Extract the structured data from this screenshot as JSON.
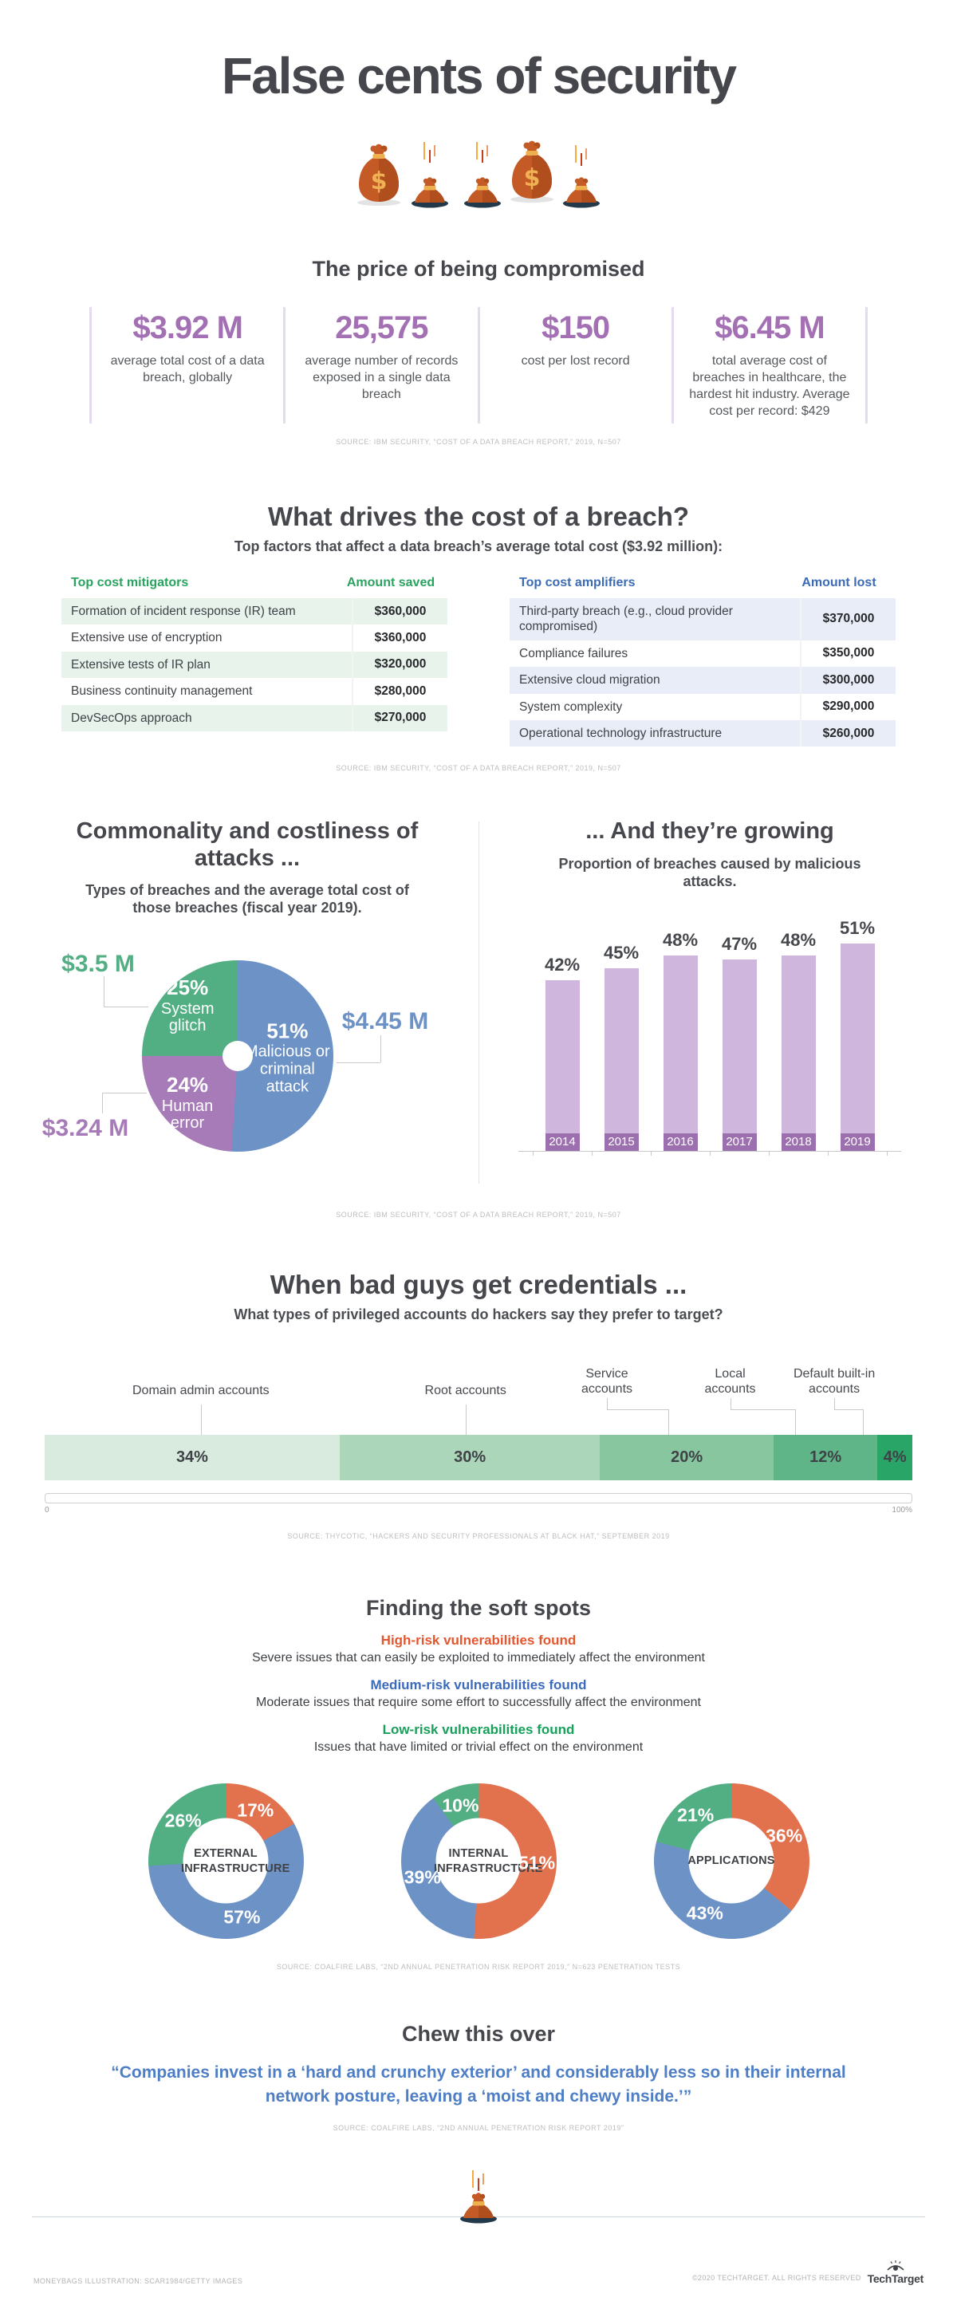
{
  "header": {
    "title": "False cents of security"
  },
  "price": {
    "title": "The price of being compromised",
    "stats": [
      {
        "value": "$3.92 M",
        "desc": "average total cost of a data breach, globally"
      },
      {
        "value": "25,575",
        "desc": "average number of records exposed in a single data breach"
      },
      {
        "value": "$150",
        "desc": "cost per lost record"
      },
      {
        "value": "$6.45 M",
        "desc": "total average cost of breaches in healthcare, the hardest hit industry. Average cost per record: $429"
      }
    ],
    "source": "SOURCE: IBM SECURITY, “COST OF A DATA BREACH REPORT,” 2019, N=507"
  },
  "drivers": {
    "title": "What drives the cost of a breach?",
    "subtitle": "Top factors that affect a data breach’s average total cost ($3.92 million):",
    "mitigators": {
      "factor_header": "Top cost mitigators",
      "amount_header": "Amount saved",
      "accent": "#2aa35f",
      "row_bg": "#e8f3ec",
      "rows": [
        [
          "Formation of incident response (IR) team",
          "$360,000"
        ],
        [
          "Extensive use of encryption",
          "$360,000"
        ],
        [
          "Extensive tests of IR plan",
          "$320,000"
        ],
        [
          "Business continuity management",
          "$280,000"
        ],
        [
          "DevSecOps approach",
          "$270,000"
        ]
      ]
    },
    "amplifiers": {
      "factor_header": "Top cost amplifiers",
      "amount_header": "Amount lost",
      "accent": "#3b6bb4",
      "row_bg": "#e9edf7",
      "rows": [
        [
          "Third-party breach (e.g., cloud provider compromised)",
          "$370,000"
        ],
        [
          "Compliance failures",
          "$350,000"
        ],
        [
          "Extensive cloud migration",
          "$300,000"
        ],
        [
          "System complexity",
          "$290,000"
        ],
        [
          "Operational technology infrastructure",
          "$260,000"
        ]
      ]
    },
    "source": "SOURCE: IBM SECURITY, “COST OF A DATA BREACH REPORT,” 2019, N=507"
  },
  "attacks": {
    "source": "SOURCE: IBM SECURITY, “COST OF A DATA BREACH REPORT,” 2019, N=507"
  },
  "credentials": {
    "title": "When bad guys get credentials ...",
    "subtitle": "What types of privileged accounts do hackers say they prefer to target?",
    "source": "SOURCE: THYCOTIC, “HACKERS AND SECURITY PROFESSIONALS AT BLACK HAT,” SEPTEMBER 2019"
  },
  "softspots": {
    "title": "Finding the soft spots",
    "risks": [
      {
        "label": "High-risk vulnerabilities found",
        "color": "#e2572f",
        "desc": "Severe issues that can easily be exploited to immediately affect the environment"
      },
      {
        "label": "Medium-risk vulnerabilities found",
        "color": "#3c6bbd",
        "desc": "Moderate issues that require some effort to successfully affect the environment"
      },
      {
        "label": "Low-risk vulnerabilities found",
        "color": "#18a05a",
        "desc": "Issues that have limited or trivial effect on the environment"
      }
    ],
    "source": "SOURCE: COALFIRE LABS, “2ND ANNUAL PENETRATION RISK REPORT 2019,” N=623 PENETRATION TESTS"
  },
  "quote": {
    "title": "Chew this over",
    "text": "“Companies invest in a ‘hard and crunchy exterior’ and considerably less so in their internal network posture, leaving a ‘moist and chewy inside.’”",
    "source": "SOURCE: COALFIRE LABS, “2ND ANNUAL PENETRATION RISK REPORT 2019”"
  },
  "footer": {
    "credit": "MONEYBAGS ILLUSTRATION: SCAR1984/GETTY IMAGES",
    "copyright": "©2020 TECHTARGET. ALL RIGHTS RESERVED",
    "brand": "TechTarget"
  },
  "chart_data": [
    {
      "id": "breach_types",
      "type": "pie",
      "title": "Commonality and costliness of attacks ...",
      "subtitle": "Types of breaches and the average total cost of those breaches (fiscal year 2019).",
      "donut_hole_pct": 16,
      "clockwise_from_top": true,
      "slices": [
        {
          "label": "Malicious or criminal attack",
          "pct_label": "51%",
          "value": 51,
          "avg_cost": "$4.45 M",
          "color": "#6d92c6"
        },
        {
          "label": "Human error",
          "pct_label": "24%",
          "value": 24,
          "avg_cost": "$3.24 M",
          "color": "#a77ab8"
        },
        {
          "label": "System glitch",
          "pct_label": "25%",
          "value": 25,
          "avg_cost": "$3.5 M",
          "color": "#52ae83"
        }
      ]
    },
    {
      "id": "malicious_growth",
      "type": "bar",
      "title": "... And they’re growing",
      "subtitle": "Proportion of breaches caused by malicious attacks.",
      "categories": [
        "2014",
        "2015",
        "2016",
        "2017",
        "2018",
        "2019"
      ],
      "values": [
        42,
        45,
        48,
        47,
        48,
        51
      ],
      "value_labels": [
        "42%",
        "45%",
        "48%",
        "47%",
        "48%",
        "51%"
      ],
      "unit": "%",
      "ylim": [
        0,
        60
      ],
      "bar_color": "#cfb6dd",
      "category_band_color": "#9c70ae",
      "grid": false,
      "legend": "none"
    },
    {
      "id": "privileged_accounts",
      "type": "bar",
      "variant": "horizontal-stacked",
      "segments": [
        {
          "label": "Domain admin accounts",
          "pct_label": "34%",
          "value": 34,
          "color": "#d8ebde"
        },
        {
          "label": "Root accounts",
          "pct_label": "30%",
          "value": 30,
          "color": "#abd6ba"
        },
        {
          "label": "Service accounts",
          "pct_label": "20%",
          "value": 20,
          "color": "#88c69f"
        },
        {
          "label": "Local accounts",
          "pct_label": "12%",
          "value": 12,
          "color": "#5fb587"
        },
        {
          "label": "Default built-in accounts",
          "pct_label": "4%",
          "value": 4,
          "color": "#28a567"
        }
      ],
      "axis_min_label": "0",
      "axis_max_label": "100%"
    },
    {
      "id": "soft_spots",
      "type": "pie",
      "variant": "donut-set",
      "donut_hole_pct": 55,
      "clockwise_from_top": true,
      "legend": [
        {
          "label": "High-risk vulnerabilities found",
          "color": "#e2714e"
        },
        {
          "label": "Medium-risk vulnerabilities found",
          "color": "#6d92c6"
        },
        {
          "label": "Low-risk vulnerabilities found",
          "color": "#52ae83"
        }
      ],
      "donuts": [
        {
          "center_label": "EXTERNAL INFRASTRUCTURE",
          "slices": [
            {
              "risk": "High-risk",
              "pct_label": "17%",
              "value": 17,
              "color": "#e2714e"
            },
            {
              "risk": "Medium-risk",
              "pct_label": "57%",
              "value": 57,
              "color": "#6d92c6"
            },
            {
              "risk": "Low-risk",
              "pct_label": "26%",
              "value": 26,
              "color": "#52ae83"
            }
          ]
        },
        {
          "center_label": "INTERNAL INFRASTRUCTURE",
          "slices": [
            {
              "risk": "High-risk",
              "pct_label": "51%",
              "value": 51,
              "color": "#e2714e"
            },
            {
              "risk": "Medium-risk",
              "pct_label": "39%",
              "value": 39,
              "color": "#6d92c6"
            },
            {
              "risk": "Low-risk",
              "pct_label": "10%",
              "value": 10,
              "color": "#52ae83"
            }
          ]
        },
        {
          "center_label": "APPLICATIONS",
          "slices": [
            {
              "risk": "High-risk",
              "pct_label": "36%",
              "value": 36,
              "color": "#e2714e"
            },
            {
              "risk": "Medium-risk",
              "pct_label": "43%",
              "value": 43,
              "color": "#6d92c6"
            },
            {
              "risk": "Low-risk",
              "pct_label": "21%",
              "value": 21,
              "color": "#52ae83"
            }
          ]
        }
      ]
    }
  ]
}
